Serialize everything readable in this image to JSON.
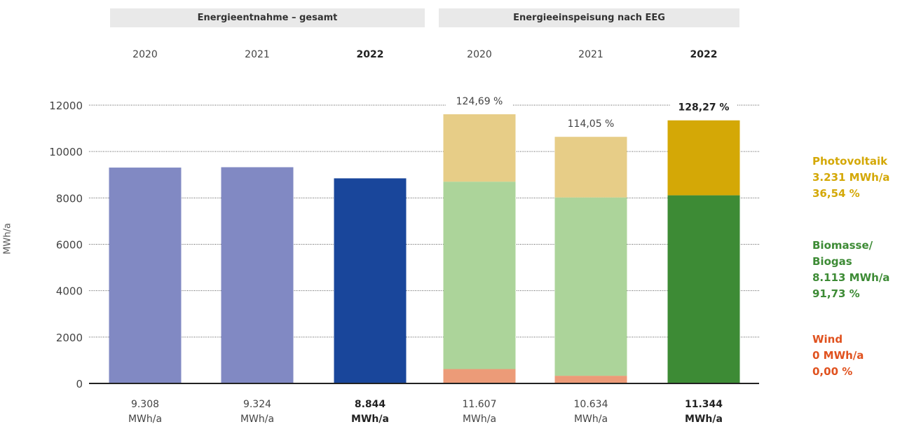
{
  "groups": [
    {
      "title": "Energieentnahme – gesamt"
    },
    {
      "title": "Energieeinspeisung nach EEG"
    }
  ],
  "y_axis_title": "MWh/a",
  "bars": [
    {
      "year": "2020",
      "bold": false,
      "total_value": "9.308",
      "unit": "MWh/a",
      "pct": ""
    },
    {
      "year": "2021",
      "bold": false,
      "total_value": "9.324",
      "unit": "MWh/a",
      "pct": ""
    },
    {
      "year": "2022",
      "bold": true,
      "total_value": "8.844",
      "unit": "MWh/a",
      "pct": ""
    },
    {
      "year": "2020",
      "bold": false,
      "total_value": "11.607",
      "unit": "MWh/a",
      "pct": "124,69 %"
    },
    {
      "year": "2021",
      "bold": false,
      "total_value": "10.634",
      "unit": "MWh/a",
      "pct": "114,05 %"
    },
    {
      "year": "2022",
      "bold": true,
      "total_value": "11.344",
      "unit": "MWh/a",
      "pct": "128,27 %"
    }
  ],
  "legend": {
    "pv": {
      "line1": "Photovoltaik",
      "line2": "3.231 MWh/a",
      "line3": "36,54 %",
      "color": "#d4a806"
    },
    "bio": {
      "line1": "Biomasse/",
      "line2": "Biogas",
      "line3": "8.113 MWh/a",
      "line4": "91,73 %",
      "color": "#3d8b35"
    },
    "wind": {
      "line1": "Wind",
      "line2": "0 MWh/a",
      "line3": "0,00 %",
      "color": "#e0521f"
    }
  },
  "chart_data": {
    "type": "bar",
    "stacked": true,
    "ylabel": "MWh/a",
    "ylim": [
      0,
      12000
    ],
    "yticks": [
      0,
      2000,
      4000,
      6000,
      8000,
      10000,
      12000
    ],
    "grid": true,
    "categories": [
      "2020",
      "2021",
      "2022",
      "2020",
      "2021",
      "2022"
    ],
    "series": [
      {
        "name": "",
        "values": [
          9308,
          9324,
          8844,
          0,
          0,
          0
        ],
        "colors": [
          "#8189c3",
          "#8189c3",
          "#19469b",
          null,
          null,
          null
        ]
      },
      {
        "name": "Wind",
        "values": [
          0,
          0,
          0,
          620,
          330,
          0
        ],
        "colors": [
          null,
          null,
          null,
          "#ec9b78",
          "#ec9b78",
          "#e0521f"
        ]
      },
      {
        "name": "Biomasse/Biogas",
        "values": [
          0,
          0,
          0,
          8080,
          7690,
          8113
        ],
        "colors": [
          null,
          null,
          null,
          "#acd49a",
          "#acd49a",
          "#3d8b35"
        ]
      },
      {
        "name": "Photovoltaik",
        "values": [
          0,
          0,
          0,
          2907,
          2614,
          3231
        ],
        "colors": [
          null,
          null,
          null,
          "#e7cd87",
          "#e7cd87",
          "#d4a806"
        ]
      }
    ]
  }
}
